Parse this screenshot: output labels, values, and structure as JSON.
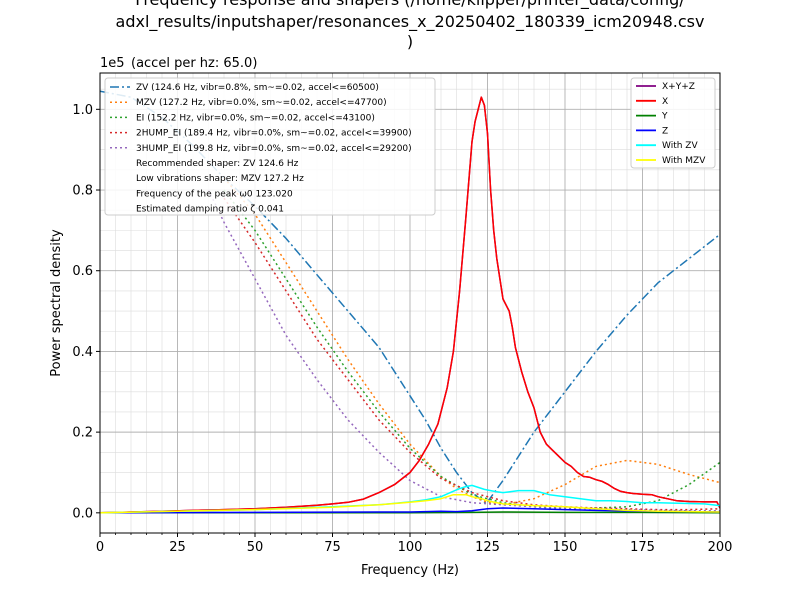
{
  "chart_data": {
    "type": "line",
    "title_lines": [
      "Frequency response and shapers (/home/klipper/printer_data/config/",
      "adxl_results/inputshaper/resonances_x_20250402_180339_icm20948.csv",
      ")"
    ],
    "xlabel": "Frequency (Hz)",
    "ylabel": "Power spectral density",
    "y_offset_label": "1e5",
    "accel_label": "(accel per hz: 65.0)",
    "xlim": [
      0,
      200
    ],
    "ylim": [
      -0.05,
      1.09
    ],
    "y_scale": 100000,
    "grid": true,
    "xticks": [
      0,
      25,
      50,
      75,
      100,
      125,
      150,
      175,
      200
    ],
    "xtick_labels": [
      "0",
      "25",
      "50",
      "75",
      "100",
      "125",
      "150",
      "175",
      "200"
    ],
    "yticks": [
      0.0,
      0.2,
      0.4,
      0.6,
      0.8,
      1.0
    ],
    "ytick_labels": [
      "0.0",
      "0.2",
      "0.4",
      "0.6",
      "0.8",
      "1.0"
    ],
    "left_legend": {
      "placement": "upper-left",
      "entries": [
        {
          "label": "ZV (124.6 Hz, vibr=0.8%, sm~=0.02, accel<=60500)",
          "color": "#1f77b4",
          "dash": "dashdot"
        },
        {
          "label": "MZV (127.2 Hz, vibr=0.0%, sm~=0.02, accel<=47700)",
          "color": "#ff7f0e",
          "dash": "dotted"
        },
        {
          "label": "EI (152.2 Hz, vibr=0.0%, sm~=0.02, accel<=43100)",
          "color": "#2ca02c",
          "dash": "dotted"
        },
        {
          "label": "2HUMP_EI (189.4 Hz, vibr=0.0%, sm~=0.02, accel<=39900)",
          "color": "#d62728",
          "dash": "dotted"
        },
        {
          "label": "3HUMP_EI (199.8 Hz, vibr=0.0%, sm~=0.02, accel<=29200)",
          "color": "#9467bd",
          "dash": "dotted"
        }
      ],
      "notes": [
        "Recommended shaper: ZV 124.6 Hz",
        "Low vibrations shaper: MZV 127.2 Hz",
        "Frequency of the peak ω0 123.020",
        "Estimated damping ratio ζ 0.041"
      ]
    },
    "right_legend": {
      "placement": "upper-right",
      "entries": [
        {
          "label": "X+Y+Z",
          "color": "#800080"
        },
        {
          "label": "X",
          "color": "#ff0000"
        },
        {
          "label": "Y",
          "color": "#008000"
        },
        {
          "label": "Z",
          "color": "#0000ff"
        },
        {
          "label": "With ZV",
          "color": "#00ffff"
        },
        {
          "label": "With MZV",
          "color": "#ffff00"
        }
      ]
    },
    "psd_series": [
      {
        "name": "X+Y+Z",
        "color": "#800080",
        "width": 1.5,
        "x": [
          0,
          10,
          20,
          30,
          40,
          50,
          60,
          70,
          75,
          80,
          85,
          90,
          95,
          100,
          103,
          106,
          109,
          112,
          114,
          116,
          118,
          120,
          121,
          122,
          123,
          124,
          125,
          126,
          127,
          128,
          130,
          132,
          133,
          134,
          136,
          138,
          140,
          142,
          144,
          146,
          148,
          150,
          152,
          154,
          156,
          158,
          160,
          162,
          164,
          166,
          168,
          170,
          172,
          175,
          178,
          180,
          183,
          186,
          190,
          195,
          199,
          200
        ],
        "y": [
          0.0,
          0.002,
          0.004,
          0.006,
          0.008,
          0.01,
          0.014,
          0.019,
          0.022,
          0.026,
          0.034,
          0.05,
          0.07,
          0.1,
          0.13,
          0.17,
          0.22,
          0.31,
          0.4,
          0.55,
          0.73,
          0.92,
          0.97,
          1.0,
          1.03,
          1.01,
          0.94,
          0.8,
          0.7,
          0.63,
          0.53,
          0.5,
          0.46,
          0.41,
          0.35,
          0.3,
          0.26,
          0.2,
          0.17,
          0.155,
          0.14,
          0.125,
          0.115,
          0.1,
          0.09,
          0.088,
          0.082,
          0.078,
          0.07,
          0.06,
          0.053,
          0.05,
          0.048,
          0.046,
          0.045,
          0.04,
          0.035,
          0.03,
          0.028,
          0.027,
          0.027,
          0.012
        ]
      },
      {
        "name": "X",
        "color": "#ff0000",
        "width": 1.5,
        "x": [
          0,
          10,
          20,
          30,
          40,
          50,
          60,
          70,
          75,
          80,
          85,
          90,
          95,
          100,
          103,
          106,
          109,
          112,
          114,
          116,
          118,
          120,
          121,
          122,
          123,
          124,
          125,
          126,
          127,
          128,
          130,
          132,
          133,
          134,
          136,
          138,
          140,
          142,
          144,
          146,
          148,
          150,
          152,
          154,
          156,
          158,
          160,
          162,
          164,
          166,
          168,
          170,
          172,
          175,
          178,
          180,
          183,
          186,
          190,
          195,
          199,
          200
        ],
        "y": [
          0.0,
          0.002,
          0.004,
          0.006,
          0.008,
          0.01,
          0.014,
          0.019,
          0.022,
          0.026,
          0.034,
          0.05,
          0.07,
          0.1,
          0.13,
          0.17,
          0.22,
          0.31,
          0.4,
          0.55,
          0.73,
          0.92,
          0.97,
          1.0,
          1.03,
          1.01,
          0.94,
          0.8,
          0.7,
          0.63,
          0.53,
          0.5,
          0.46,
          0.41,
          0.35,
          0.3,
          0.26,
          0.2,
          0.17,
          0.155,
          0.14,
          0.125,
          0.115,
          0.1,
          0.09,
          0.088,
          0.082,
          0.078,
          0.07,
          0.06,
          0.053,
          0.05,
          0.048,
          0.046,
          0.045,
          0.04,
          0.035,
          0.03,
          0.028,
          0.027,
          0.027,
          0.012
        ]
      },
      {
        "name": "Y",
        "color": "#008000",
        "width": 1.5,
        "x": [
          0,
          50,
          100,
          120,
          130,
          150,
          175,
          200
        ],
        "y": [
          0.0,
          0.0,
          0.0,
          0.001,
          0.002,
          0.001,
          0.001,
          0.0
        ]
      },
      {
        "name": "Z",
        "color": "#0000ff",
        "width": 1.5,
        "x": [
          0,
          50,
          90,
          100,
          110,
          115,
          120,
          125,
          130,
          140,
          150,
          160,
          175,
          190,
          200
        ],
        "y": [
          0.0,
          0.001,
          0.002,
          0.002,
          0.004,
          0.003,
          0.005,
          0.01,
          0.012,
          0.01,
          0.008,
          0.006,
          0.004,
          0.003,
          0.002
        ]
      },
      {
        "name": "With ZV",
        "color": "#00ffff",
        "width": 1.5,
        "x": [
          0,
          25,
          50,
          75,
          90,
          100,
          105,
          110,
          113,
          116,
          118,
          120,
          122,
          124,
          126,
          128,
          130,
          135,
          140,
          145,
          150,
          155,
          160,
          165,
          170,
          175,
          180,
          185,
          190,
          195,
          200
        ],
        "y": [
          0.0,
          0.004,
          0.008,
          0.015,
          0.02,
          0.027,
          0.032,
          0.04,
          0.05,
          0.06,
          0.065,
          0.068,
          0.063,
          0.058,
          0.055,
          0.052,
          0.05,
          0.055,
          0.055,
          0.045,
          0.04,
          0.035,
          0.03,
          0.03,
          0.028,
          0.025,
          0.025,
          0.024,
          0.023,
          0.022,
          0.018
        ]
      },
      {
        "name": "With MZV",
        "color": "#ffff00",
        "width": 1.5,
        "x": [
          0,
          25,
          50,
          75,
          90,
          100,
          105,
          110,
          114,
          118,
          120,
          123,
          126,
          130,
          135,
          140,
          150,
          160,
          170,
          180,
          190,
          200
        ],
        "y": [
          0.0,
          0.004,
          0.008,
          0.014,
          0.02,
          0.026,
          0.03,
          0.035,
          0.045,
          0.045,
          0.04,
          0.035,
          0.028,
          0.022,
          0.02,
          0.018,
          0.015,
          0.01,
          0.006,
          0.004,
          0.003,
          0.002
        ]
      }
    ],
    "shaper_series": [
      {
        "name": "ZV",
        "color": "#1f77b4",
        "dash": "dashdot",
        "x": [
          0,
          10,
          20,
          30,
          40,
          50,
          60,
          70,
          80,
          90,
          100,
          105,
          110,
          115,
          120,
          124.6,
          130,
          140,
          150,
          160,
          170,
          180,
          190,
          200
        ],
        "y": [
          1.045,
          1.03,
          0.98,
          0.91,
          0.83,
          0.76,
          0.68,
          0.59,
          0.5,
          0.41,
          0.29,
          0.23,
          0.16,
          0.1,
          0.05,
          0.023,
          0.08,
          0.2,
          0.3,
          0.4,
          0.49,
          0.57,
          0.63,
          0.69
        ]
      },
      {
        "name": "MZV",
        "color": "#ff7f0e",
        "dash": "dotted",
        "x": [
          40,
          50,
          60,
          70,
          80,
          90,
          100,
          105,
          110,
          115,
          120,
          125,
          127.2,
          130,
          140,
          150,
          160,
          170,
          175,
          180,
          190,
          200
        ],
        "y": [
          0.83,
          0.74,
          0.62,
          0.5,
          0.38,
          0.27,
          0.17,
          0.13,
          0.09,
          0.06,
          0.04,
          0.026,
          0.023,
          0.02,
          0.035,
          0.07,
          0.115,
          0.13,
          0.125,
          0.12,
          0.095,
          0.075
        ]
      },
      {
        "name": "EI",
        "color": "#2ca02c",
        "dash": "dotted",
        "x": [
          40,
          50,
          60,
          70,
          80,
          90,
          100,
          110,
          120,
          130,
          140,
          150,
          152.2,
          160,
          170,
          180,
          190,
          200
        ],
        "y": [
          0.8,
          0.7,
          0.58,
          0.46,
          0.35,
          0.25,
          0.16,
          0.09,
          0.045,
          0.025,
          0.015,
          0.01,
          0.01,
          0.012,
          0.015,
          0.03,
          0.07,
          0.125
        ]
      },
      {
        "name": "2HUMP_EI",
        "color": "#d62728",
        "dash": "dotted",
        "x": [
          40,
          50,
          60,
          70,
          80,
          90,
          100,
          110,
          120,
          130,
          140,
          150,
          160,
          170,
          180,
          189.4,
          200
        ],
        "y": [
          0.78,
          0.67,
          0.55,
          0.43,
          0.33,
          0.23,
          0.15,
          0.085,
          0.05,
          0.03,
          0.02,
          0.015,
          0.012,
          0.01,
          0.008,
          0.008,
          0.01
        ]
      },
      {
        "name": "3HUMP_EI",
        "color": "#9467bd",
        "dash": "dotted",
        "x": [
          35,
          40,
          50,
          60,
          70,
          80,
          90,
          100,
          110,
          120,
          130,
          140,
          150,
          160,
          170,
          180,
          190,
          199.8
        ],
        "y": [
          0.8,
          0.72,
          0.58,
          0.44,
          0.33,
          0.23,
          0.15,
          0.08,
          0.04,
          0.025,
          0.02,
          0.015,
          0.012,
          0.01,
          0.008,
          0.006,
          0.005,
          0.005
        ]
      }
    ]
  }
}
